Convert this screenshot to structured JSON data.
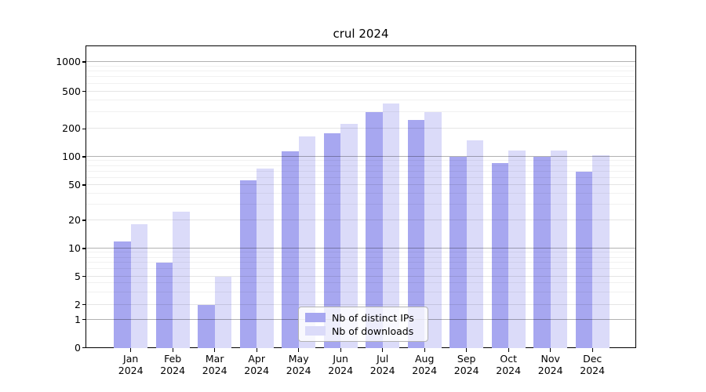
{
  "chart_data": {
    "type": "bar",
    "title": "crul 2024",
    "categories": [
      "Jan 2024",
      "Feb 2024",
      "Mar 2024",
      "Apr 2024",
      "May 2024",
      "Jun 2024",
      "Jul 2024",
      "Aug 2024",
      "Sep 2024",
      "Oct 2024",
      "Nov 2024",
      "Dec 2024"
    ],
    "x_tick_months": [
      "Jan",
      "Feb",
      "Mar",
      "Apr",
      "May",
      "Jun",
      "Jul",
      "Aug",
      "Sep",
      "Oct",
      "Nov",
      "Dec"
    ],
    "x_tick_year": "2024",
    "series": [
      {
        "name": "Nb of distinct IPs",
        "color": "#a7a7f0",
        "values": [
          12,
          7,
          2,
          56,
          114,
          180,
          300,
          250,
          100,
          85,
          100,
          70
        ]
      },
      {
        "name": "Nb of downloads",
        "color": "#dbdbf9",
        "values": [
          18,
          25,
          5,
          75,
          165,
          228,
          375,
          300,
          150,
          117,
          117,
          105
        ]
      }
    ],
    "yticks": [
      0,
      1,
      2,
      5,
      10,
      20,
      50,
      100,
      200,
      500,
      1000
    ],
    "yscale": "symlog",
    "ylim": [
      0,
      1000
    ],
    "xlabel": "",
    "ylabel": "",
    "grid": true,
    "legend_position": "lower center",
    "colors": {
      "axis": "#000000",
      "grid_major": "#b3b3b3",
      "grid_minor": "#ececec",
      "background": "#ffffff"
    }
  }
}
